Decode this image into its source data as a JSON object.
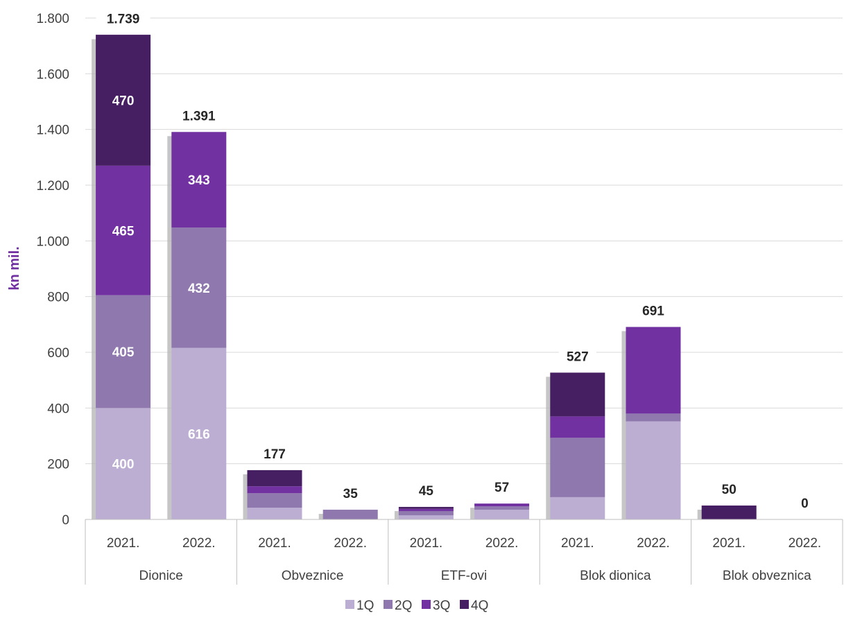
{
  "chart_data": {
    "type": "bar",
    "stacked": true,
    "title": "",
    "xlabel": "",
    "ylabel": "kn mil.",
    "ylim": [
      0,
      1800
    ],
    "yticks": [
      0,
      200,
      400,
      600,
      800,
      1000,
      1200,
      1400,
      1600,
      1800
    ],
    "ytick_labels": [
      "0",
      "200",
      "400",
      "600",
      "800",
      "1.000",
      "1.200",
      "1.400",
      "1.600",
      "1.800"
    ],
    "grid": true,
    "legend_position": "bottom",
    "groups": [
      {
        "label": "Dionice",
        "bars": [
          {
            "label": "2021.",
            "values": [
              400,
              405,
              465,
              470
            ],
            "total": 1739,
            "total_label": "1.739",
            "segment_labels": [
              "400",
              "405",
              "465",
              "470"
            ]
          },
          {
            "label": "2022.",
            "values": [
              616,
              432,
              343,
              0
            ],
            "total": 1391,
            "total_label": "1.391",
            "segment_labels": [
              "616",
              "432",
              "343",
              ""
            ]
          }
        ]
      },
      {
        "label": "Obveznice",
        "bars": [
          {
            "label": "2021.",
            "values": [
              42,
              52,
              25,
              58
            ],
            "total": 177,
            "total_label": "177",
            "segment_labels": [
              "",
              "",
              "",
              ""
            ]
          },
          {
            "label": "2022.",
            "values": [
              0,
              35,
              0,
              0
            ],
            "total": 35,
            "total_label": "35",
            "segment_labels": [
              "",
              "",
              "",
              ""
            ]
          }
        ]
      },
      {
        "label": "ETF-ovi",
        "bars": [
          {
            "label": "2021.",
            "values": [
              15,
              15,
              8,
              7
            ],
            "total": 45,
            "total_label": "45",
            "segment_labels": [
              "",
              "",
              "",
              ""
            ]
          },
          {
            "label": "2022.",
            "values": [
              35,
              12,
              10,
              0
            ],
            "total": 57,
            "total_label": "57",
            "segment_labels": [
              "",
              "",
              "",
              ""
            ]
          }
        ]
      },
      {
        "label": "Blok dionica",
        "bars": [
          {
            "label": "2021.",
            "values": [
              80,
              213,
              77,
              157
            ],
            "total": 527,
            "total_label": "527",
            "segment_labels": [
              "",
              "",
              "",
              ""
            ]
          },
          {
            "label": "2022.",
            "values": [
              352,
              28,
              311,
              0
            ],
            "total": 691,
            "total_label": "691",
            "segment_labels": [
              "",
              "",
              "",
              ""
            ]
          }
        ]
      },
      {
        "label": "Blok obveznica",
        "bars": [
          {
            "label": "2021.",
            "values": [
              0,
              0,
              0,
              50
            ],
            "total": 50,
            "total_label": "50",
            "segment_labels": [
              "",
              "",
              "",
              ""
            ]
          },
          {
            "label": "2022.",
            "values": [
              0,
              0,
              0,
              0
            ],
            "total": 0,
            "total_label": "0",
            "segment_labels": [
              "",
              "",
              "",
              ""
            ]
          }
        ]
      }
    ],
    "series": [
      {
        "name": "1Q",
        "color": "#bcaed3"
      },
      {
        "name": "2Q",
        "color": "#8f78ae"
      },
      {
        "name": "3Q",
        "color": "#7131a0"
      },
      {
        "name": "4Q",
        "color": "#461f63"
      }
    ],
    "colors": {
      "axis_title": "#7030a0",
      "grid": "#d9d9d9",
      "axis_line": "#bfbfbf",
      "tick_text": "#404040",
      "total_text": "#262626",
      "segment_text": "#ffffff",
      "shadow": "#b3b3b3"
    }
  }
}
